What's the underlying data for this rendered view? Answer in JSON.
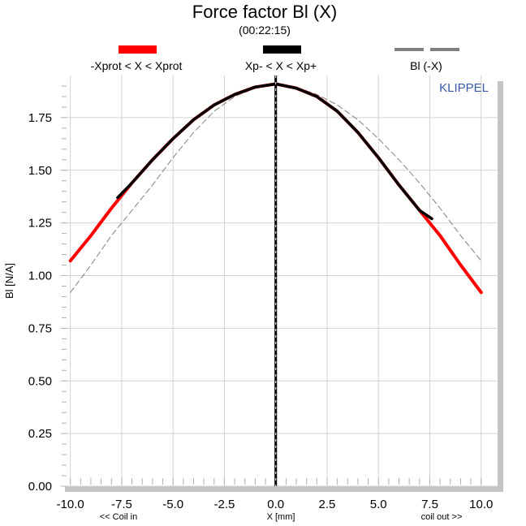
{
  "chart_data": {
    "type": "line",
    "title": "Force factor Bl (X)",
    "subtitle": "(00:22:15)",
    "xlabel": "X [mm]",
    "ylabel": "Bl [N/A]",
    "x_annotation_left": "<< Coil in",
    "x_annotation_right": "coil out >>",
    "brand": "KLIPPEL",
    "xlim": [
      -10.5,
      10.8
    ],
    "ylim": [
      0,
      1.95
    ],
    "xticks": [
      -10.0,
      -7.5,
      -5.0,
      -2.5,
      0.0,
      2.5,
      5.0,
      7.5,
      10.0
    ],
    "xtick_labels": [
      "-10.0",
      "-7.5",
      "-5.0",
      "-2.5",
      "0.0",
      "2.5",
      "5.0",
      "7.5",
      "10.0"
    ],
    "yticks": [
      0.0,
      0.25,
      0.5,
      0.75,
      1.0,
      1.25,
      1.5,
      1.75
    ],
    "ytick_labels": [
      "0.00",
      "0.25",
      "0.50",
      "0.75",
      "1.00",
      "1.25",
      "1.50",
      "1.75"
    ],
    "grid": true,
    "legend_placement": "top",
    "legend": [
      {
        "label": "-Xprot < X < Xprot",
        "color": "#ff0000",
        "style": "solid"
      },
      {
        "label": "Xp- < X < Xp+",
        "color": "#000000",
        "style": "solid"
      },
      {
        "label": "Bl (-X)",
        "color": "#808080",
        "style": "dashed"
      }
    ],
    "series": [
      {
        "color": "#ff0000",
        "x": [
          -10.0,
          -9.0,
          -8.0,
          -7.0,
          -6.0,
          -5.0,
          -4.0,
          -3.0,
          -2.0,
          -1.0,
          0.0,
          1.0,
          2.0,
          3.0,
          4.0,
          5.0,
          6.0,
          7.0,
          8.0,
          9.0,
          10.0
        ],
        "y": [
          1.07,
          1.19,
          1.32,
          1.44,
          1.55,
          1.65,
          1.74,
          1.81,
          1.86,
          1.895,
          1.91,
          1.89,
          1.85,
          1.78,
          1.68,
          1.56,
          1.43,
          1.31,
          1.19,
          1.05,
          0.92
        ]
      },
      {
        "color": "#000000",
        "x": [
          -7.7,
          -7.0,
          -6.0,
          -5.0,
          -4.0,
          -3.0,
          -2.0,
          -1.0,
          0.0,
          1.0,
          2.0,
          3.0,
          4.0,
          5.0,
          6.0,
          7.0,
          7.6
        ],
        "y": [
          1.37,
          1.44,
          1.55,
          1.65,
          1.74,
          1.81,
          1.86,
          1.895,
          1.91,
          1.89,
          1.85,
          1.78,
          1.68,
          1.56,
          1.43,
          1.31,
          1.27
        ]
      },
      {
        "color": "#808080",
        "dashed": true,
        "x": [
          -10.0,
          -9.0,
          -8.0,
          -7.0,
          -6.0,
          -5.0,
          -4.0,
          -3.0,
          -2.0,
          -1.0,
          0.0,
          1.0,
          2.0,
          3.0,
          4.0,
          5.0,
          6.0,
          7.0,
          8.0,
          9.0,
          10.0
        ],
        "y": [
          0.92,
          1.05,
          1.19,
          1.31,
          1.43,
          1.56,
          1.68,
          1.78,
          1.85,
          1.89,
          1.91,
          1.895,
          1.86,
          1.81,
          1.74,
          1.65,
          1.55,
          1.44,
          1.32,
          1.19,
          1.07
        ]
      }
    ],
    "vertical_marker": {
      "x": 0.0,
      "color": "#000000"
    }
  }
}
